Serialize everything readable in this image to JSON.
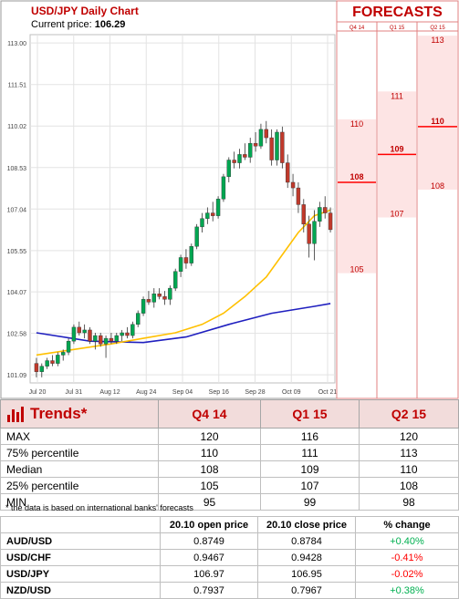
{
  "header": {
    "title": "USD/JPY Daily Chart",
    "current_label": "Current price:",
    "current_value": "106.29"
  },
  "forecasts": {
    "title": "FORECASTS",
    "columns": [
      "Q4 14",
      "Q1 15",
      "Q2 15"
    ],
    "q4": {
      "max": 110,
      "median": 108,
      "min": 105
    },
    "q1": {
      "max": 111,
      "median": 109,
      "min": 107
    },
    "q2": {
      "max": 113,
      "median": 110,
      "min": 108
    }
  },
  "chart_data": {
    "type": "candlestick",
    "y_ticks": [
      "113.00",
      "111.51",
      "110.02",
      "108.53",
      "107.04",
      "105.55",
      "104.07",
      "102.58",
      "101.09"
    ],
    "x_ticks": [
      "Jul 20",
      "Jul 31",
      "Aug 12",
      "Aug 24",
      "Sep 04",
      "Sep 16",
      "Sep 28",
      "Oct 09",
      "Oct 21"
    ],
    "ylim": [
      100.8,
      113.3
    ],
    "candles": [
      [
        101.5,
        101.7,
        101.0,
        101.2
      ],
      [
        101.2,
        101.5,
        101.0,
        101.4
      ],
      [
        101.4,
        101.7,
        101.3,
        101.6
      ],
      [
        101.6,
        101.8,
        101.4,
        101.5
      ],
      [
        101.5,
        101.9,
        101.4,
        101.8
      ],
      [
        101.8,
        102.0,
        101.6,
        101.9
      ],
      [
        101.9,
        102.4,
        101.8,
        102.3
      ],
      [
        102.3,
        102.9,
        102.2,
        102.8
      ],
      [
        102.8,
        103.0,
        102.5,
        102.6
      ],
      [
        102.6,
        102.9,
        102.4,
        102.7
      ],
      [
        102.7,
        102.8,
        102.2,
        102.3
      ],
      [
        102.3,
        102.6,
        102.0,
        102.5
      ],
      [
        102.5,
        102.6,
        102.1,
        102.2
      ],
      [
        102.2,
        102.5,
        101.7,
        102.4
      ],
      [
        102.4,
        102.6,
        102.2,
        102.3
      ],
      [
        102.3,
        102.6,
        102.2,
        102.5
      ],
      [
        102.5,
        102.7,
        102.3,
        102.6
      ],
      [
        102.6,
        102.8,
        102.4,
        102.5
      ],
      [
        102.5,
        103.0,
        102.4,
        102.9
      ],
      [
        102.9,
        103.4,
        102.8,
        103.3
      ],
      [
        103.3,
        103.9,
        103.2,
        103.8
      ],
      [
        103.8,
        104.1,
        103.6,
        103.7
      ],
      [
        103.7,
        104.2,
        103.5,
        104.0
      ],
      [
        104.0,
        104.2,
        103.8,
        103.9
      ],
      [
        103.9,
        104.1,
        103.6,
        103.8
      ],
      [
        103.8,
        104.3,
        103.6,
        104.2
      ],
      [
        104.2,
        104.9,
        104.1,
        104.8
      ],
      [
        104.8,
        105.4,
        104.6,
        105.3
      ],
      [
        105.3,
        105.6,
        104.9,
        105.1
      ],
      [
        105.1,
        105.8,
        105.0,
        105.7
      ],
      [
        105.7,
        106.5,
        105.6,
        106.4
      ],
      [
        106.4,
        106.9,
        106.2,
        106.7
      ],
      [
        106.7,
        107.1,
        106.5,
        106.9
      ],
      [
        106.9,
        107.3,
        106.6,
        106.8
      ],
      [
        106.8,
        107.5,
        106.7,
        107.4
      ],
      [
        107.4,
        108.3,
        107.3,
        108.2
      ],
      [
        108.2,
        108.9,
        108.0,
        108.8
      ],
      [
        108.8,
        109.1,
        108.5,
        108.7
      ],
      [
        108.7,
        109.2,
        108.5,
        109.0
      ],
      [
        109.0,
        109.4,
        108.8,
        108.9
      ],
      [
        108.9,
        109.6,
        108.7,
        109.4
      ],
      [
        109.4,
        109.8,
        109.1,
        109.3
      ],
      [
        109.3,
        110.1,
        109.2,
        109.9
      ],
      [
        109.9,
        110.2,
        109.4,
        109.6
      ],
      [
        109.6,
        109.9,
        108.6,
        108.8
      ],
      [
        108.8,
        109.9,
        108.6,
        109.8
      ],
      [
        109.8,
        110.0,
        108.5,
        108.7
      ],
      [
        108.7,
        109.0,
        107.8,
        108.0
      ],
      [
        108.0,
        108.3,
        107.5,
        107.8
      ],
      [
        107.8,
        108.0,
        106.9,
        107.2
      ],
      [
        107.2,
        107.4,
        106.2,
        106.5
      ],
      [
        106.5,
        106.8,
        105.3,
        105.8
      ],
      [
        105.8,
        107.0,
        105.2,
        106.6
      ],
      [
        106.6,
        107.3,
        106.4,
        107.1
      ],
      [
        107.1,
        107.5,
        106.7,
        106.9
      ],
      [
        106.9,
        107.1,
        106.2,
        106.3
      ]
    ],
    "ma_yellow": [
      [
        101.8,
        0
      ],
      [
        102.0,
        7
      ],
      [
        102.2,
        14
      ],
      [
        102.4,
        20
      ],
      [
        102.6,
        26
      ],
      [
        102.9,
        31
      ],
      [
        103.3,
        35
      ],
      [
        103.9,
        39
      ],
      [
        104.6,
        43
      ],
      [
        105.4,
        46
      ],
      [
        106.2,
        49
      ],
      [
        106.8,
        52
      ],
      [
        107.0,
        55
      ]
    ],
    "ma_blue": [
      [
        102.6,
        0
      ],
      [
        102.3,
        10
      ],
      [
        102.25,
        20
      ],
      [
        102.45,
        28
      ],
      [
        102.9,
        36
      ],
      [
        103.3,
        44
      ],
      [
        103.55,
        52
      ],
      [
        103.65,
        55
      ]
    ]
  },
  "trends": {
    "title": "Trends*",
    "columns": [
      "Q4 14",
      "Q1 15",
      "Q2 15"
    ],
    "rows": [
      {
        "label": "MAX",
        "values": [
          "120",
          "116",
          "120"
        ]
      },
      {
        "label": "75% percentile",
        "values": [
          "110",
          "111",
          "113"
        ]
      },
      {
        "label": "Median",
        "values": [
          "108",
          "109",
          "110"
        ]
      },
      {
        "label": "25% percentile",
        "values": [
          "105",
          "107",
          "108"
        ]
      },
      {
        "label": "MIN",
        "values": [
          "95",
          "99",
          "98"
        ]
      }
    ],
    "footnote": "* the data is based on international banks' forecasts"
  },
  "fx": {
    "columns": [
      "20.10 open price",
      "20.10 close price",
      "% change"
    ],
    "rows": [
      {
        "pair": "AUD/USD",
        "open": "0.8749",
        "close": "0.8784",
        "change": "+0.40%",
        "dir": "pos"
      },
      {
        "pair": "USD/CHF",
        "open": "0.9467",
        "close": "0.9428",
        "change": "-0.41%",
        "dir": "neg"
      },
      {
        "pair": "USD/JPY",
        "open": "106.97",
        "close": "106.95",
        "change": "-0.02%",
        "dir": "neg"
      },
      {
        "pair": "NZD/USD",
        "open": "0.7937",
        "close": "0.7967",
        "change": "+0.38%",
        "dir": "pos"
      }
    ]
  },
  "colors": {
    "up": "#00a651",
    "down": "#c0392b",
    "ma_yellow": "#ffc000",
    "ma_blue": "#1f1fbf",
    "forecast_red": "#ff0000"
  }
}
